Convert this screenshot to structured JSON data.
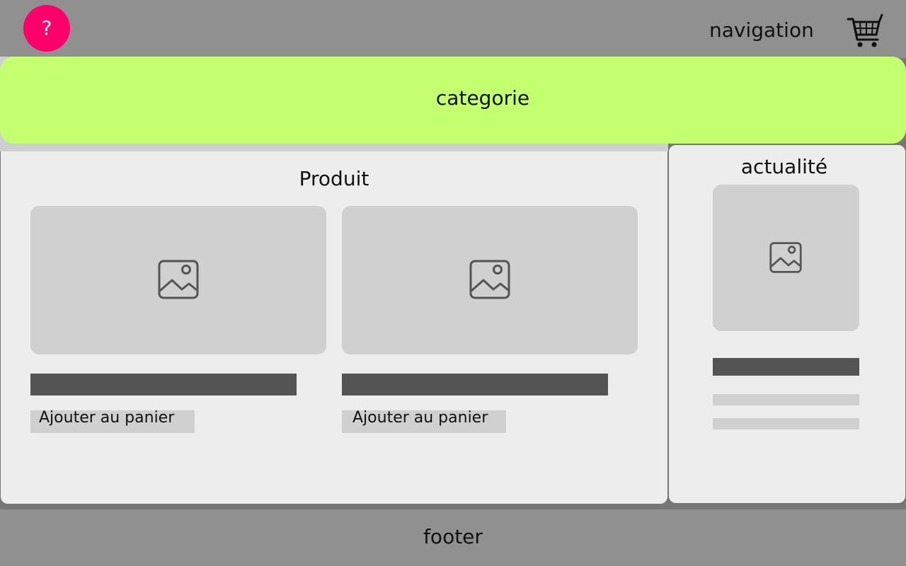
{
  "header": {
    "help_label": "?",
    "nav_label": "navigation",
    "cart_icon": "shopping-cart-icon"
  },
  "category": {
    "label": "categorie"
  },
  "products": {
    "title": "Produit",
    "items": [
      {
        "image_icon": "image-placeholder-icon",
        "add_label": "Ajouter au panier"
      },
      {
        "image_icon": "image-placeholder-icon",
        "add_label": "Ajouter au panier"
      }
    ]
  },
  "news": {
    "title": "actualité",
    "image_icon": "image-placeholder-icon"
  },
  "footer": {
    "label": "footer"
  },
  "colors": {
    "help_button": "#ff006b",
    "category_bar": "#c4ff70",
    "panel_bg": "#ededed",
    "placeholder": "#d0d0d0",
    "dark_bar": "#545454",
    "chrome": "#909090"
  }
}
